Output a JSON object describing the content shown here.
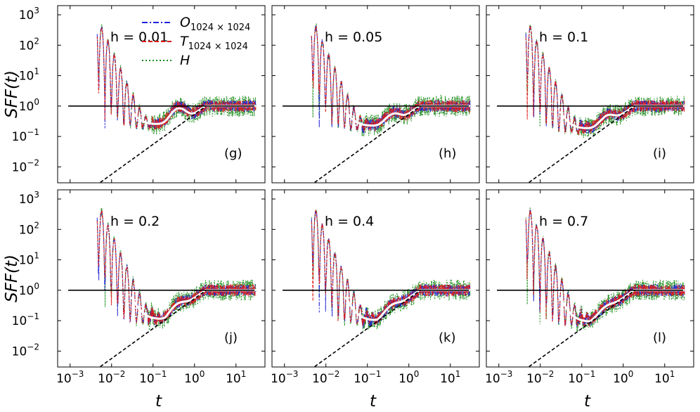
{
  "chart_data": {
    "type": "line",
    "layout": "2x3 grid",
    "ylabel": "SFF(t)",
    "xlabel": "t",
    "xscale": "log",
    "yscale": "log",
    "xlim": [
      0.0005,
      50
    ],
    "ylim": [
      0.003,
      2000
    ],
    "x_ticks": [
      {
        "base": "10",
        "exp": "−3"
      },
      {
        "base": "10",
        "exp": "−2"
      },
      {
        "base": "10",
        "exp": "−1"
      },
      {
        "base": "10",
        "exp": "0"
      },
      {
        "base": "10",
        "exp": "1"
      }
    ],
    "y_ticks": [
      {
        "base": "10",
        "exp": "3"
      },
      {
        "base": "10",
        "exp": "2"
      },
      {
        "base": "10",
        "exp": "1"
      },
      {
        "base": "10",
        "exp": "0"
      },
      {
        "base": "10",
        "exp": "−1"
      },
      {
        "base": "10",
        "exp": "−2"
      }
    ],
    "legend": [
      {
        "main": "O",
        "sub": "1024 × 1024",
        "color": "#1f1fd6",
        "dash": "dashdot"
      },
      {
        "main": "T",
        "sub": "1024 × 1024",
        "color": "#e01818",
        "dash": "dashed"
      },
      {
        "main": "H",
        "sub": "",
        "color": "#1a8c1a",
        "dash": "dotted"
      }
    ],
    "reference_lines": {
      "plateau": {
        "y": 1.0,
        "style": "solid",
        "color": "#000000"
      },
      "ramp": {
        "slope": 1,
        "style": "dashed",
        "color": "#000000"
      }
    },
    "panels": [
      {
        "h_label": "h = 0.01",
        "tag": "(g)",
        "dip_t": 0.15,
        "dip_value": 0.25,
        "bump": 2.0
      },
      {
        "h_label": "h = 0.05",
        "tag": "(h)",
        "dip_t": 0.12,
        "dip_value": 0.22,
        "bump": 1.1
      },
      {
        "h_label": "h = 0.1",
        "tag": "(i)",
        "dip_t": 0.14,
        "dip_value": 0.18,
        "bump": 0.9
      },
      {
        "h_label": "h = 0.2",
        "tag": "(j)",
        "dip_t": 0.12,
        "dip_value": 0.11,
        "bump": 0.5
      },
      {
        "h_label": "h = 0.4",
        "tag": "(k)",
        "dip_t": 0.12,
        "dip_value": 0.1,
        "bump": 0.4
      },
      {
        "h_label": "h = 0.7",
        "tag": "(l)",
        "dip_t": 0.12,
        "dip_value": 0.09,
        "bump": 0.3
      }
    ]
  }
}
